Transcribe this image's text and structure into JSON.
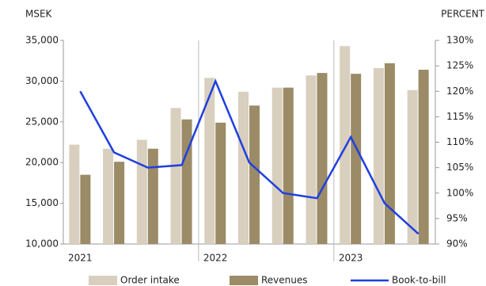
{
  "chart_data": {
    "type": "bar",
    "y_axis_label": "MSEK",
    "y2_axis_label": "PERCENT",
    "categories": [
      "2021",
      null,
      null,
      null,
      "2022",
      null,
      null,
      null,
      "2023",
      null,
      null
    ],
    "series": [
      {
        "name": "Order intake",
        "color": "#d8cfbe",
        "values": [
          22200,
          21700,
          22800,
          26700,
          30400,
          28700,
          29200,
          30700,
          34300,
          31600,
          28900
        ]
      },
      {
        "name": "Revenues",
        "color": "#9b8b66",
        "values": [
          18500,
          20100,
          21700,
          25300,
          24900,
          27000,
          29200,
          31000,
          30900,
          32200,
          31400
        ]
      },
      {
        "name": "Book-to-bill",
        "type": "line",
        "axis": "y2",
        "color": "#1f3fe0",
        "values": [
          120,
          108,
          105,
          105.5,
          122,
          106,
          100,
          99,
          111,
          98,
          92
        ]
      }
    ],
    "ylim": [
      10000,
      35000
    ],
    "yticks": [
      {
        "value": 10000,
        "label": "10,000"
      },
      {
        "value": 15000,
        "label": "15,000"
      },
      {
        "value": 20000,
        "label": "20,000"
      },
      {
        "value": 25000,
        "label": "25,000"
      },
      {
        "value": 30000,
        "label": "30,000"
      },
      {
        "value": 35000,
        "label": "35,000"
      }
    ],
    "y2lim": [
      90,
      130
    ],
    "y2ticks": [
      {
        "value": 90,
        "label": "90%"
      },
      {
        "value": 95,
        "label": "95%"
      },
      {
        "value": 100,
        "label": "100%"
      },
      {
        "value": 105,
        "label": "105%"
      },
      {
        "value": 110,
        "label": "110%"
      },
      {
        "value": 115,
        "label": "115%"
      },
      {
        "value": 120,
        "label": "120%"
      },
      {
        "value": 125,
        "label": "125%"
      },
      {
        "value": 130,
        "label": "130%"
      }
    ]
  }
}
